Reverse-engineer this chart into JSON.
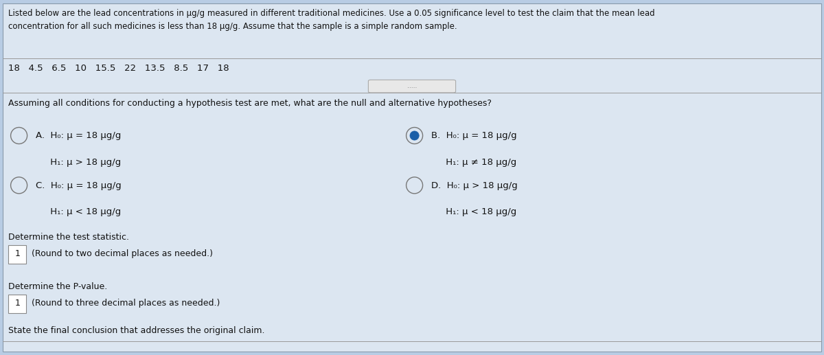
{
  "bg_color": "#b8cce4",
  "white_bg": "#dce6f1",
  "panel_bg": "#dce6f1",
  "text_color": "#111111",
  "intro_text_line1": "Listed below are the lead concentrations in μg/g measured in different traditional medicines. Use a 0.05 significance level to test the claim that the mean lead",
  "intro_text_line2": "concentration for all such medicines is less than 18 μg/g. Assume that the sample is a simple random sample.",
  "data_values": "18   4.5   6.5   10   15.5   22   13.5   8.5   17   18",
  "question_text": "Assuming all conditions for conducting a hypothesis test are met, what are the null and alternative hypotheses?",
  "option_A_h0": "A.  H₀: μ = 18 μg/g",
  "option_A_h1": "     H₁: μ > 18 μg/g",
  "option_B_h0": "B.  H₀: μ = 18 μg/g",
  "option_B_h1": "     H₁: μ ≠ 18 μg/g",
  "option_C_h0": "C.  H₀: μ = 18 μg/g",
  "option_C_h1": "     H₁: μ < 18 μg/g",
  "option_D_h0": "D.  H₀: μ > 18 μg/g",
  "option_D_h1": "     H₁: μ < 18 μg/g",
  "test_stat_label": "Determine the test statistic.",
  "test_stat_box": "1",
  "test_stat_note": "(Round to two decimal places as needed.)",
  "pvalue_label": "Determine the P-value.",
  "pvalue_box": "1",
  "pvalue_note": "(Round to three decimal places as needed.)",
  "conclusion_label": "State the final conclusion that addresses the original claim.",
  "dots_text": ".....",
  "font_size_intro": 8.5,
  "font_size_data": 9.5,
  "font_size_question": 9.0,
  "font_size_options": 9.5,
  "font_size_labels": 9.0,
  "radio_color_empty": "#777777",
  "radio_fill_color": "#1a5fa8",
  "separator_color": "#999999",
  "box_border_color": "#888888"
}
